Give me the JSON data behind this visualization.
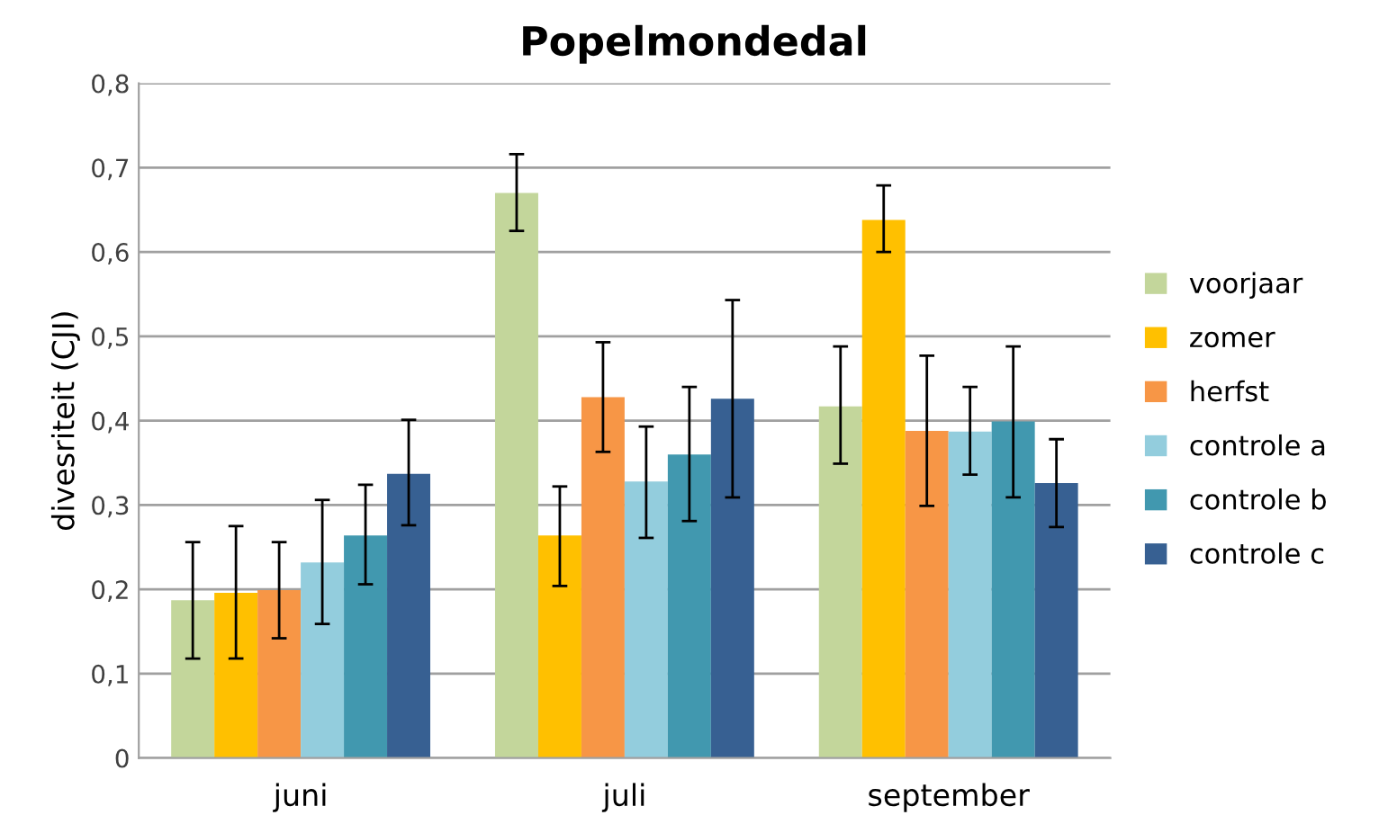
{
  "chart_data": {
    "type": "bar",
    "title": "Popelmondedal",
    "ylabel": "divesriteit (CJI)",
    "categories": [
      "juni",
      "juli",
      "september"
    ],
    "series": [
      {
        "name": "voorjaar",
        "color": "#c3d69b",
        "values": [
          0.187,
          0.67,
          0.417
        ],
        "errors": [
          [
            0.118,
            0.256
          ],
          [
            0.625,
            0.716
          ],
          [
            0.349,
            0.488
          ]
        ]
      },
      {
        "name": "zomer",
        "color": "#ffc000",
        "values": [
          0.196,
          0.264,
          0.638
        ],
        "errors": [
          [
            0.118,
            0.275
          ],
          [
            0.204,
            0.322
          ],
          [
            0.6,
            0.679
          ]
        ]
      },
      {
        "name": "herfst",
        "color": "#f79646",
        "values": [
          0.199,
          0.428,
          0.388
        ],
        "errors": [
          [
            0.142,
            0.256
          ],
          [
            0.363,
            0.493
          ],
          [
            0.299,
            0.477
          ]
        ]
      },
      {
        "name": "controle a",
        "color": "#93cddd",
        "values": [
          0.232,
          0.328,
          0.387
        ],
        "errors": [
          [
            0.159,
            0.306
          ],
          [
            0.261,
            0.393
          ],
          [
            0.336,
            0.44
          ]
        ]
      },
      {
        "name": "controle b",
        "color": "#4198af",
        "values": [
          0.264,
          0.36,
          0.399
        ],
        "errors": [
          [
            0.206,
            0.324
          ],
          [
            0.281,
            0.44
          ],
          [
            0.309,
            0.488
          ]
        ]
      },
      {
        "name": "controle c",
        "color": "#376092",
        "values": [
          0.337,
          0.426,
          0.326
        ],
        "errors": [
          [
            0.276,
            0.401
          ],
          [
            0.309,
            0.543
          ],
          [
            0.274,
            0.378
          ]
        ]
      }
    ],
    "ylim": [
      0,
      0.8
    ],
    "yticks": [
      {
        "value": 0,
        "label": "0"
      },
      {
        "value": 0.1,
        "label": "0,1"
      },
      {
        "value": 0.2,
        "label": "0,2"
      },
      {
        "value": 0.3,
        "label": "0,3"
      },
      {
        "value": 0.4,
        "label": "0,4"
      },
      {
        "value": 0.5,
        "label": "0,5"
      },
      {
        "value": 0.6,
        "label": "0,6"
      },
      {
        "value": 0.7,
        "label": "0,7"
      },
      {
        "value": 0.8,
        "label": "0,8"
      }
    ],
    "grid": "y",
    "legend": "right"
  }
}
